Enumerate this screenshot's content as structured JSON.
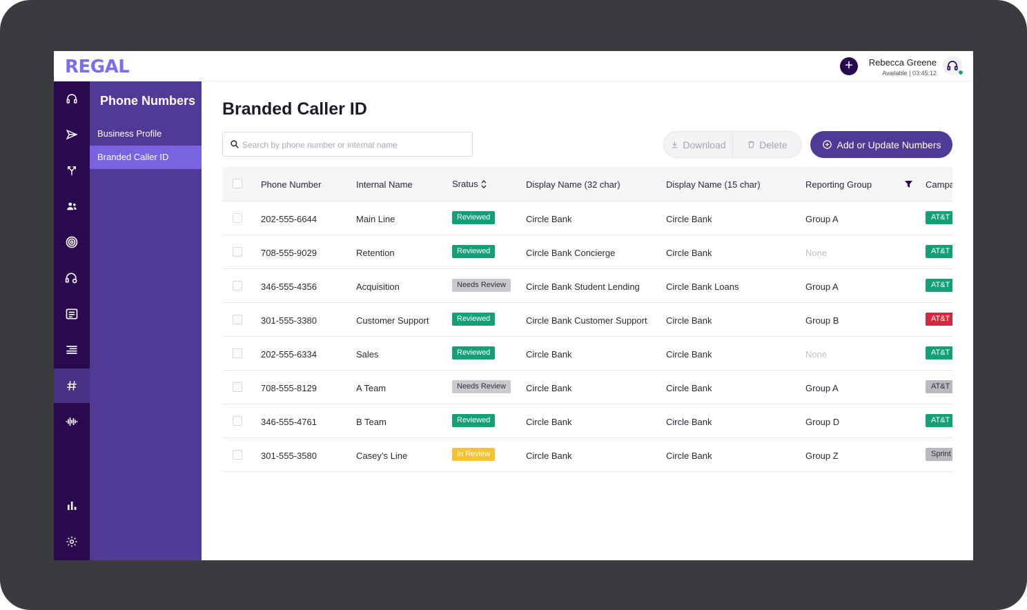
{
  "app": {
    "logo": "REGAL"
  },
  "user": {
    "name": "Rebecca Greene",
    "status": "Available | 03:45:12"
  },
  "sidebar": {
    "rail": [
      {
        "icon": "headset-icon"
      },
      {
        "icon": "send-icon"
      },
      {
        "icon": "branch-icon"
      },
      {
        "icon": "people-icon"
      },
      {
        "icon": "target-icon"
      },
      {
        "icon": "agent-headset-icon"
      },
      {
        "icon": "list-box-icon"
      },
      {
        "icon": "task-list-icon"
      },
      {
        "icon": "hash-icon",
        "active": true
      },
      {
        "icon": "waveform-icon"
      },
      {
        "icon": "bar-chart-icon"
      },
      {
        "icon": "gear-icon"
      }
    ],
    "section_title": "Phone Numbers",
    "items": [
      {
        "label": "Business Profile"
      },
      {
        "label": "Branded Caller ID",
        "active": true
      }
    ]
  },
  "main": {
    "title": "Branded Caller ID",
    "search": {
      "placeholder": "Search by phone number or internal name",
      "value": ""
    },
    "toolbar": {
      "download_label": "Download",
      "delete_label": "Delete",
      "add_label": "Add or Update Numbers"
    }
  },
  "colors": {
    "accent": "#4f3b96",
    "rail": "#2a0a4e",
    "active_item": "#7a63e0",
    "reviewed": "#13a077",
    "needs_review": "#c9c9cf",
    "in_review": "#f8c234",
    "carrier_alert": "#d3293a"
  },
  "table": {
    "headers": {
      "phone": "Phone Number",
      "internal": "Internal Name",
      "status": "Sratus",
      "display32": "Display Name (32 char)",
      "display15": "Display Name (15 char)",
      "group": "Reporting Group",
      "campaign": "Campa"
    },
    "rows": [
      {
        "phone": "202-555-6644",
        "internal": "Main Line",
        "status": "Reviewed",
        "status_type": "reviewed",
        "display32": "Circle Bank",
        "display15": "Circle Bank",
        "group": "Group A",
        "carrier": "AT&T",
        "carrier_type": "green"
      },
      {
        "phone": "708-555-9029",
        "internal": "Retention",
        "status": "Reviewed",
        "status_type": "reviewed",
        "display32": "Circle Bank Concierge",
        "display15": "Circle Bank",
        "group": "None",
        "carrier": "AT&T",
        "carrier_type": "green"
      },
      {
        "phone": "346-555-4356",
        "internal": "Acquisition",
        "status": "Needs Review",
        "status_type": "needs",
        "display32": "Circle Bank Student Lending",
        "display15": "Circle Bank Loans",
        "group": "Group A",
        "carrier": "AT&T",
        "carrier_type": "green"
      },
      {
        "phone": "301-555-3380",
        "internal": "Customer Support",
        "status": "Reviewed",
        "status_type": "reviewed",
        "display32": "Circle Bank Customer Support",
        "display15": "Circle Bank",
        "group": "Group B",
        "carrier": "AT&T",
        "carrier_type": "red"
      },
      {
        "phone": "202-555-6334",
        "internal": "Sales",
        "status": "Reviewed",
        "status_type": "reviewed",
        "display32": "Circle Bank",
        "display15": "Circle Bank",
        "group": "None",
        "carrier": "AT&T",
        "carrier_type": "green"
      },
      {
        "phone": "708-555-8129",
        "internal": "A Team",
        "status": "Needs Review",
        "status_type": "needs",
        "display32": "Circle Bank",
        "display15": "Circle Bank",
        "group": "Group A",
        "carrier": "AT&T",
        "carrier_type": "grey"
      },
      {
        "phone": "346-555-4761",
        "internal": "B Team",
        "status": "Reviewed",
        "status_type": "reviewed",
        "display32": "Circle Bank",
        "display15": "Circle Bank",
        "group": "Group D",
        "carrier": "AT&T",
        "carrier_type": "green"
      },
      {
        "phone": "301-555-3580",
        "internal": "Casey’s Line",
        "status": "In Review",
        "status_type": "inreview",
        "display32": "Circle Bank",
        "display15": "Circle Bank",
        "group": "Group Z",
        "carrier": "Sprint",
        "carrier_type": "grey"
      }
    ]
  }
}
